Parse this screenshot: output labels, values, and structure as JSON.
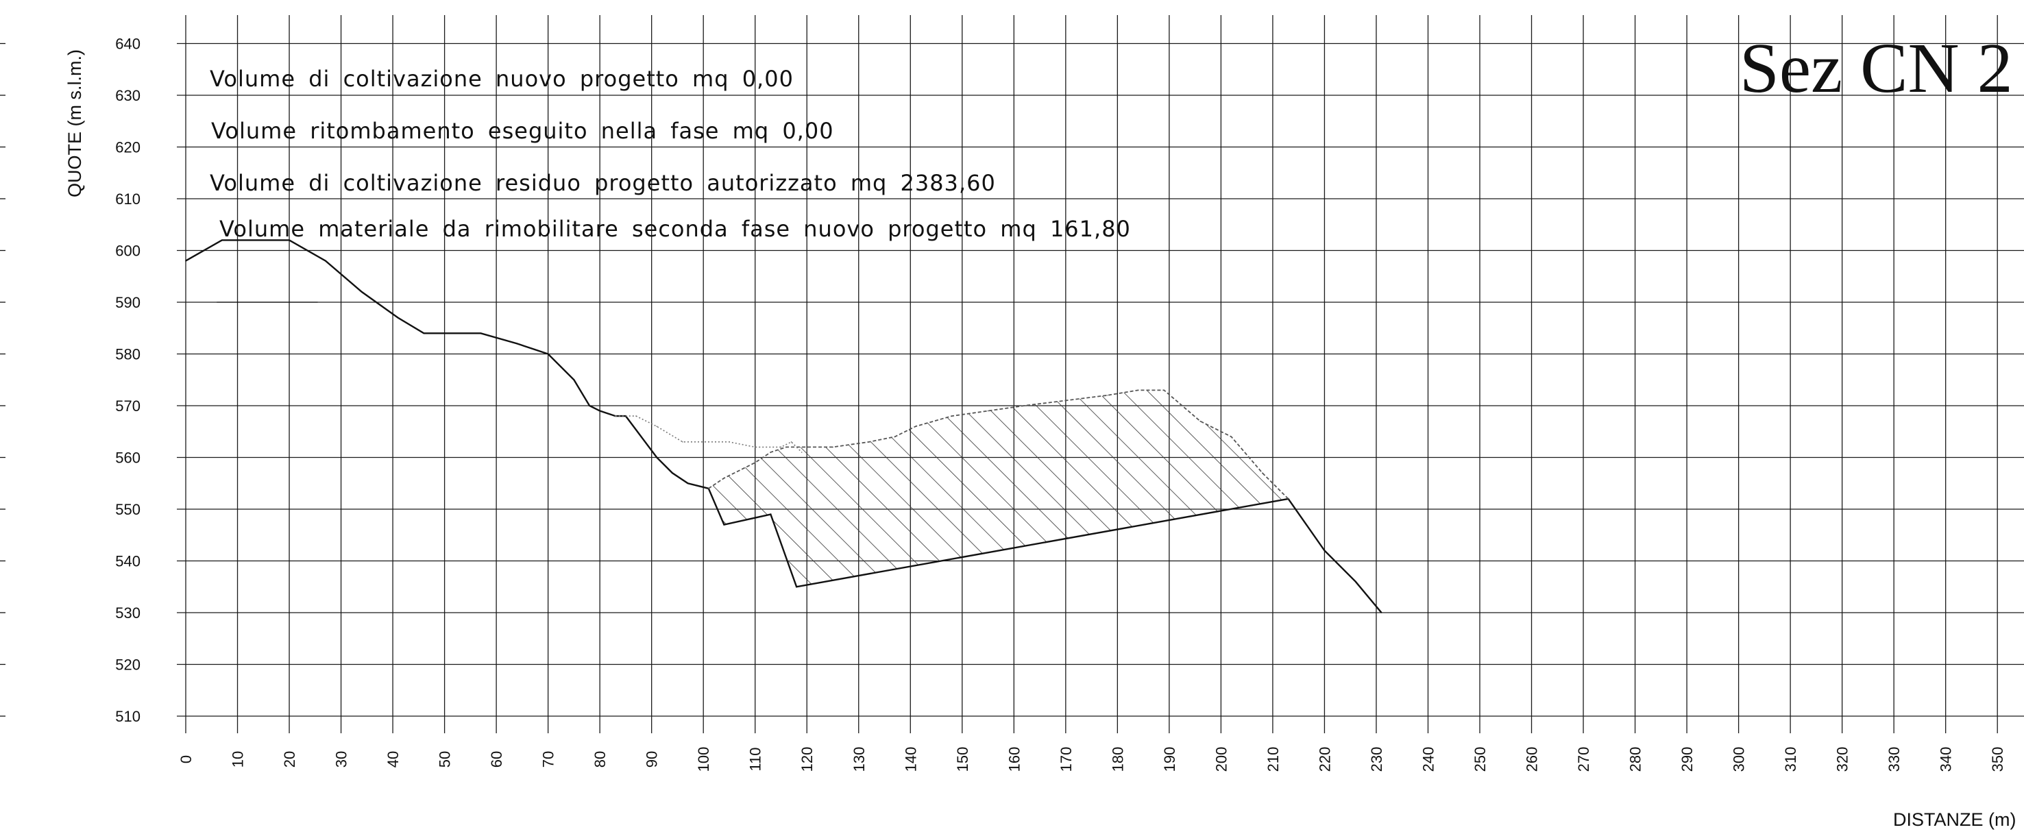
{
  "chart_data": {
    "type": "line",
    "title": "Sez CN 2",
    "xlabel": "DISTANZE (m)",
    "ylabel": "QUOTE (m s.l.m.)",
    "xlim": [
      0,
      350
    ],
    "ylim": [
      510,
      640
    ],
    "x_ticks": [
      0,
      10,
      20,
      30,
      40,
      50,
      60,
      70,
      80,
      90,
      100,
      110,
      120,
      130,
      140,
      150,
      160,
      170,
      180,
      190,
      200,
      210,
      220,
      230,
      240,
      250,
      260,
      270,
      280,
      290,
      300,
      310,
      320,
      330,
      340,
      350
    ],
    "y_ticks": [
      510,
      520,
      530,
      540,
      550,
      560,
      570,
      580,
      590,
      600,
      610,
      620,
      630,
      640
    ],
    "grid": true,
    "annotations": [
      "Volume di coltivazione nuovo progetto mq 0,00",
      "Volume ritombamento eseguito nella fase mq 0,00",
      "Volume di coltivazione residuo progetto autorizzato mq 2383,60",
      "Volume materiale da rimobilitare seconda fase nuovo progetto mq 161,80"
    ],
    "series": [
      {
        "style": "solid",
        "points": [
          [
            0,
            598
          ],
          [
            7,
            602
          ],
          [
            20,
            602
          ],
          [
            27,
            598
          ],
          [
            34,
            592
          ],
          [
            41,
            587
          ],
          [
            46,
            584
          ],
          [
            57,
            584
          ],
          [
            64,
            582
          ],
          [
            70,
            580
          ],
          [
            75,
            575
          ],
          [
            78,
            570
          ],
          [
            80,
            569
          ],
          [
            83,
            568
          ],
          [
            85,
            568
          ],
          [
            88,
            564
          ],
          [
            91,
            560
          ],
          [
            94,
            557
          ],
          [
            97,
            555
          ],
          [
            101,
            554
          ],
          [
            104,
            547
          ],
          [
            113,
            549
          ],
          [
            118,
            535
          ],
          [
            213,
            552
          ],
          [
            220,
            542
          ],
          [
            226,
            536
          ],
          [
            231,
            530
          ]
        ]
      },
      {
        "style": "dashed",
        "points": [
          [
            101,
            554
          ],
          [
            104,
            556
          ],
          [
            110,
            559
          ],
          [
            113,
            561
          ],
          [
            116,
            562
          ],
          [
            125,
            562
          ],
          [
            132,
            563
          ],
          [
            137,
            564
          ],
          [
            141,
            566
          ],
          [
            148,
            568
          ],
          [
            155,
            569
          ],
          [
            162,
            570
          ],
          [
            170,
            571
          ],
          [
            178,
            572
          ],
          [
            184,
            573
          ],
          [
            189,
            573
          ],
          [
            196,
            567
          ],
          [
            202,
            564
          ],
          [
            208,
            557
          ],
          [
            213,
            552
          ]
        ]
      },
      {
        "style": "dotted",
        "points": [
          [
            83,
            568
          ],
          [
            87,
            568
          ],
          [
            91,
            566
          ],
          [
            96,
            563
          ],
          [
            105,
            563
          ],
          [
            110,
            562
          ],
          [
            115,
            562
          ],
          [
            117,
            563
          ],
          [
            119,
            561
          ]
        ]
      }
    ],
    "hatched_region": "Volume di coltivazione residuo progetto autorizzato",
    "colors": {
      "line": "#111111",
      "grid": "#1a1a1a",
      "dashed": "#555555",
      "hatch": "#333333"
    }
  }
}
